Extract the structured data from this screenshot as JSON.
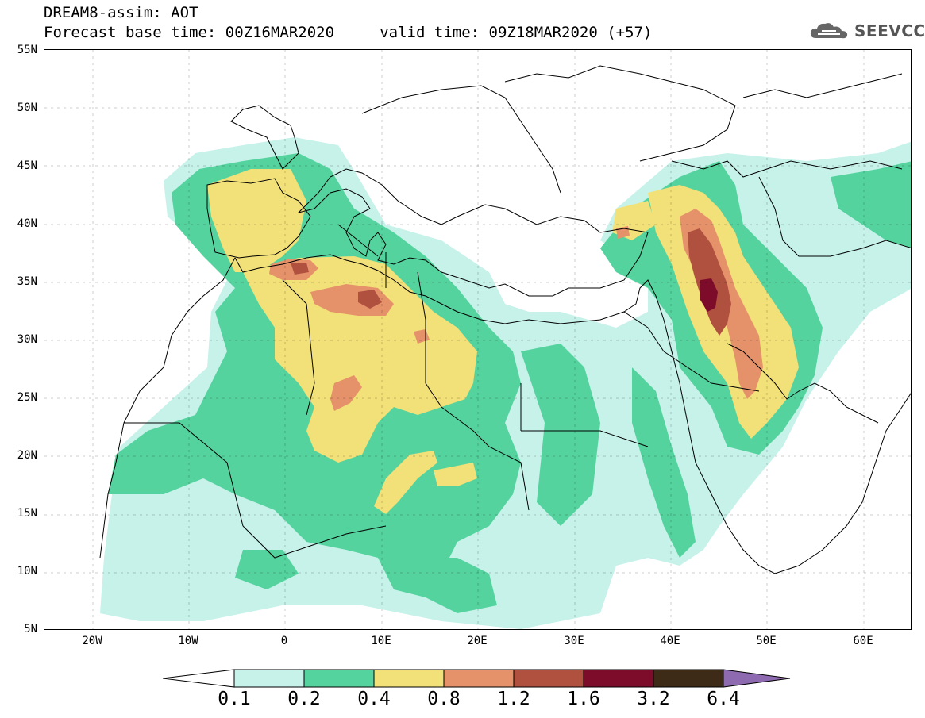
{
  "header": {
    "title_line1": "DREAM8-assim: AOT",
    "title_line2": "Forecast base time: 00Z16MAR2020     valid time: 09Z18MAR2020 (+57)"
  },
  "logo": {
    "text": "SEEVCCC",
    "icon": "cloud-icon"
  },
  "map": {
    "projection": "lat-lon",
    "lon_range": [
      -25,
      65
    ],
    "lat_range": [
      5,
      55
    ],
    "lat_labels": [
      "55N",
      "50N",
      "45N",
      "40N",
      "35N",
      "30N",
      "25N",
      "20N",
      "15N",
      "10N",
      "5N"
    ],
    "lon_labels": [
      "20W",
      "10W",
      "0",
      "10E",
      "20E",
      "30E",
      "40E",
      "50E",
      "60E"
    ],
    "colors": {
      "c01": "#c6f2ea",
      "c02": "#55d39e",
      "c04": "#f2e079",
      "c08": "#e5916a",
      "c12": "#b0503f",
      "c16": "#7d0c2a",
      "c32": "#3d2a17",
      "c64": "#8e6bb0"
    }
  },
  "colorbar": {
    "labels": [
      "0.1",
      "0.2",
      "0.4",
      "0.8",
      "1.2",
      "1.6",
      "3.2",
      "6.4"
    ],
    "colors": [
      "#c6f2ea",
      "#55d39e",
      "#f2e079",
      "#e5916a",
      "#b0503f",
      "#7d0c2a",
      "#3d2a17"
    ],
    "over_color": "#8e6bb0",
    "under_color": "#ffffff"
  }
}
